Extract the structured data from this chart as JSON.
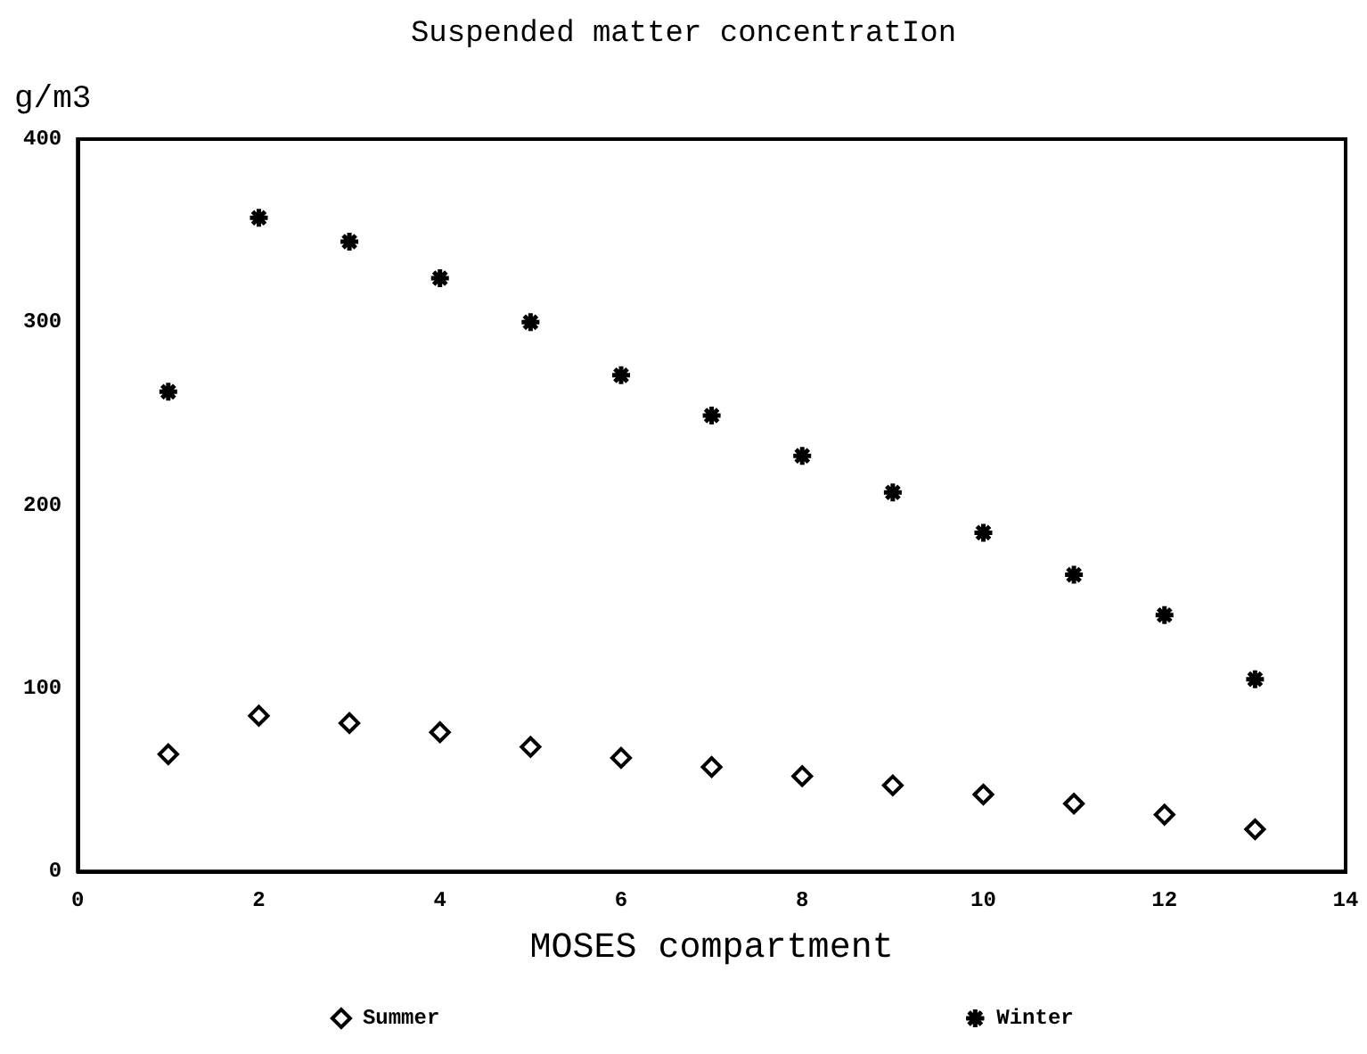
{
  "chart_data": {
    "type": "scatter",
    "title": "Suspended matter concentratIon",
    "xlabel": "MOSES compartment",
    "ylabel": "g/m3",
    "x": [
      1,
      2,
      3,
      4,
      5,
      6,
      7,
      8,
      9,
      10,
      11,
      12,
      13
    ],
    "series": [
      {
        "name": "Summer",
        "color": "#000000",
        "marker": "diamond",
        "values": [
          64,
          85,
          81,
          76,
          68,
          62,
          57,
          52,
          47,
          42,
          37,
          31,
          23
        ]
      },
      {
        "name": "Winter",
        "color": "#000000",
        "marker": "cross",
        "values": [
          262,
          357,
          344,
          324,
          300,
          271,
          249,
          227,
          207,
          185,
          162,
          140,
          105
        ]
      }
    ],
    "xlim": [
      0,
      14
    ],
    "xticks": [
      0,
      2,
      4,
      6,
      8,
      10,
      12,
      14
    ],
    "ylim": [
      0,
      400
    ],
    "yticks": [
      0,
      100,
      200,
      300,
      400
    ],
    "grid": false,
    "legend": "bottom"
  }
}
